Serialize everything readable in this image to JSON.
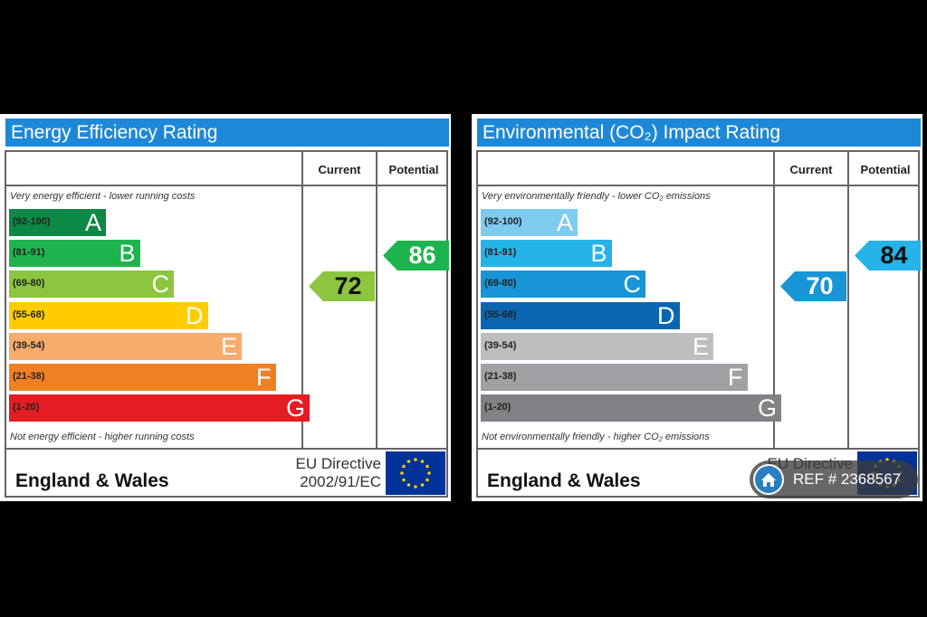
{
  "chart_data": [
    {
      "type": "bar",
      "title": "Energy Efficiency Rating",
      "columns": [
        "Current",
        "Potential"
      ],
      "top_note": "Very energy efficient - lower running costs",
      "bottom_note": "Not energy efficient - higher running costs",
      "bands": [
        {
          "range": "(92-100)",
          "letter": "A",
          "color": "#0c8a45"
        },
        {
          "range": "(81-91)",
          "letter": "B",
          "color": "#1db44e"
        },
        {
          "range": "(69-80)",
          "letter": "C",
          "color": "#8cc63f"
        },
        {
          "range": "(55-68)",
          "letter": "D",
          "color": "#ffcc00"
        },
        {
          "range": "(39-54)",
          "letter": "E",
          "color": "#f7ac6c"
        },
        {
          "range": "(21-38)",
          "letter": "F",
          "color": "#f08024"
        },
        {
          "range": "(1-20)",
          "letter": "G",
          "color": "#e31d23"
        }
      ],
      "current": {
        "value": 72,
        "band": "C",
        "color": "#8cc63f",
        "text_color": "#111111"
      },
      "potential": {
        "value": 86,
        "band": "B",
        "color": "#1db44e",
        "text_color": "#ffffff"
      },
      "region": "England & Wales",
      "directive_line1": "EU Directive",
      "directive_line2": "2002/91/EC"
    },
    {
      "type": "bar",
      "title": "Environmental (CO₂) Impact Rating",
      "columns": [
        "Current",
        "Potential"
      ],
      "top_note": "Very environmentally friendly - lower CO₂ emissions",
      "bottom_note": "Not environmentally friendly - higher CO₂ emissions",
      "bands": [
        {
          "range": "(92-100)",
          "letter": "A",
          "color": "#7ecbf0"
        },
        {
          "range": "(81-91)",
          "letter": "B",
          "color": "#25b3e8"
        },
        {
          "range": "(69-80)",
          "letter": "C",
          "color": "#1895d6"
        },
        {
          "range": "(55-68)",
          "letter": "D",
          "color": "#0b66b2"
        },
        {
          "range": "(39-54)",
          "letter": "E",
          "color": "#bcbec0"
        },
        {
          "range": "(21-38)",
          "letter": "F",
          "color": "#9fa1a4"
        },
        {
          "range": "(1-20)",
          "letter": "G",
          "color": "#808285"
        }
      ],
      "current": {
        "value": 70,
        "band": "C",
        "color": "#1895d6",
        "text_color": "#ffffff"
      },
      "potential": {
        "value": 84,
        "band": "B",
        "color": "#25b3e8",
        "text_color": "#111111"
      },
      "region": "England & Wales",
      "directive_line1": "EU Directive",
      "directive_line2": ""
    }
  ],
  "ref_badge": {
    "text": "REF # 2368567",
    "icon": "home-icon"
  }
}
